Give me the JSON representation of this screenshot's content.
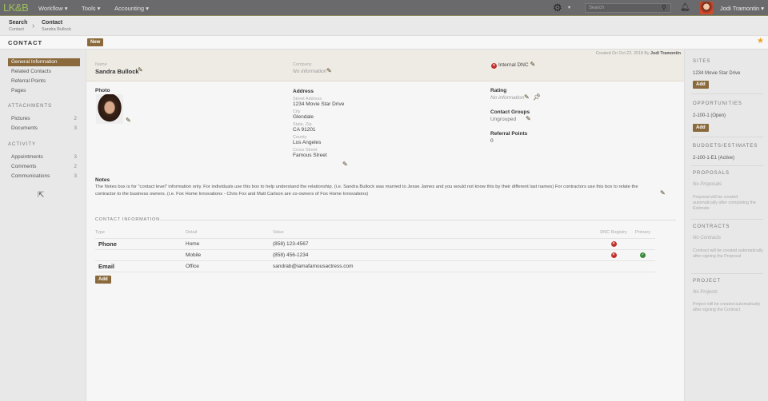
{
  "topbar": {
    "logo": "LK&B",
    "menus": [
      "Workflow ▾",
      "Tools ▾",
      "Accounting ▾"
    ],
    "search_placeholder": "Search",
    "user": "Jodi Tramontin ▾"
  },
  "breadcrumb": {
    "items": [
      {
        "title": "Search",
        "sub": "Contact"
      },
      {
        "title": "Contact",
        "sub": "Sandra Bullock"
      }
    ]
  },
  "header": {
    "title": "CONTACT",
    "new_label": "New"
  },
  "left_nav": {
    "items": [
      {
        "label": "General Information"
      },
      {
        "label": "Related Contacts"
      },
      {
        "label": "Referral Points"
      },
      {
        "label": "Pages"
      }
    ],
    "attachments_title": "ATTACHMENTS",
    "attachments": [
      {
        "label": "Pictures",
        "count": "2"
      },
      {
        "label": "Documents",
        "count": "3"
      }
    ],
    "activity_title": "ACTIVITY",
    "activity": [
      {
        "label": "Appointments",
        "count": "3"
      },
      {
        "label": "Comments",
        "count": "2"
      },
      {
        "label": "Communications",
        "count": "3"
      }
    ]
  },
  "record": {
    "created": "Created On Oct 22, 2018 By",
    "created_by": "Jodi Tramontin",
    "name_label": "Name",
    "name": "Sandra Bullock",
    "company_label": "Company",
    "company": "No information",
    "dnc": "Internal DNC"
  },
  "details": {
    "photo_label": "Photo",
    "address_label": "Address",
    "street_label": "Street Address",
    "street": "1234 Movie Star Drive",
    "city_label": "City",
    "city": "Glendale",
    "statezip_label": "State, Zip",
    "statezip": "CA 91201",
    "county_label": "County",
    "county": "Los Angeles",
    "cross_label": "Cross Street",
    "cross": "Famous Street",
    "rating_label": "Rating",
    "rating": "No information",
    "groups_label": "Contact Groups",
    "groups": "Ungrouped",
    "referral_label": "Referral Points",
    "referral": "0"
  },
  "notes": {
    "label": "Notes",
    "text": "The Notes box is for \"contact level\" information only. For individuals use this box to help understand the relationship. (i.e. Sandra Bullock was married to Jesse James and you would not know this by their different last names) For contractors use this box to relate the contractor to the business owners. (i.e. Fox Home Innovations - Chris Fox and Matt Carlson are co-owners of Fox Home Innovations)"
  },
  "contact_info": {
    "title": "CONTACT INFORMATION",
    "headers": [
      "Type",
      "Detail",
      "Value",
      "DNC Registry",
      "Primary"
    ],
    "rows": [
      {
        "type": "Phone",
        "detail": "Home",
        "value": "(858) 123-4567",
        "dnc": true,
        "primary": false
      },
      {
        "type": "",
        "detail": "Mobile",
        "value": "(858) 456-1234",
        "dnc": true,
        "primary": true
      },
      {
        "type": "Email",
        "detail": "Office",
        "value": "sandrab@iamafamousactress.com",
        "dnc": false,
        "primary": false
      }
    ],
    "add_label": "Add"
  },
  "right": {
    "sites_title": "SITES",
    "site": "1234 Movie Star Drive",
    "add_label": "Add",
    "opps_title": "OPPORTUNITIES",
    "opp": "2-100-1 (Open)",
    "budgets_title": "BUDGETS/ESTIMATES",
    "budget": "2-100-1-E1 (Active)",
    "proposals_title": "PROPOSALS",
    "proposals": "No Proposals",
    "proposals_note": "Proposal will be created automatically after completing the Estimate",
    "contracts_title": "CONTRACTS",
    "contracts": "No Contracts",
    "contracts_note": "Contract will be created automatically after signing the Proposal",
    "project_title": "PROJECT",
    "project": "No Projects",
    "project_note": "Project will be created automatically after signing the Contract"
  },
  "colors": {
    "accent": "#8a6a3c",
    "topbar": "#6a6a6c",
    "dnc": "#c0302a",
    "primary": "#3a8a3a",
    "star": "#f0a020"
  }
}
